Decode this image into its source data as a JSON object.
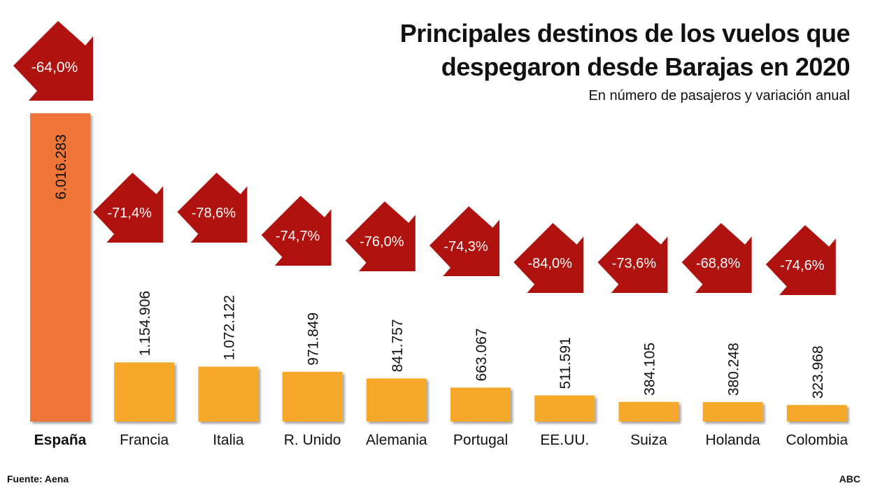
{
  "chart_data": {
    "type": "bar",
    "title": "Principales destinos de los vuelos que despegaron desde Barajas en 2020",
    "title_lines": [
      "Principales destinos de los vuelos que",
      "despegaron desde Barajas en 2020"
    ],
    "subtitle": "En número de pasajeros y variación anual",
    "categories": [
      "España",
      "Francia",
      "Italia",
      "R. Unido",
      "Alemania",
      "Portugal",
      "EE.UU.",
      "Suiza",
      "Holanda",
      "Colombia"
    ],
    "values": [
      6016283,
      1154906,
      1072122,
      971849,
      841757,
      663067,
      511591,
      384105,
      380248,
      323968
    ],
    "value_labels": [
      "6.016.283",
      "1.154.906",
      "1.072.122",
      "971.849",
      "841.757",
      "663.067",
      "511.591",
      "384.105",
      "380.248",
      "323.968"
    ],
    "annual_change_labels": [
      "-64,0%",
      "-71,4%",
      "-78,6%",
      "-74,7%",
      "-76,0%",
      "-74,3%",
      "-84,0%",
      "-73,6%",
      "-68,8%",
      "-74,6%"
    ],
    "annual_change": [
      -64.0,
      -71.4,
      -78.6,
      -74.7,
      -76.0,
      -74.3,
      -84.0,
      -73.6,
      -68.8,
      -74.6
    ],
    "ylim": [
      0,
      6016283
    ],
    "grid": false,
    "colors": {
      "highlight_bar": "#ef7637",
      "bar": "#f5a82a",
      "arrow": "#b0120f"
    },
    "source": "Fuente: Aena",
    "credit": "ABC"
  }
}
